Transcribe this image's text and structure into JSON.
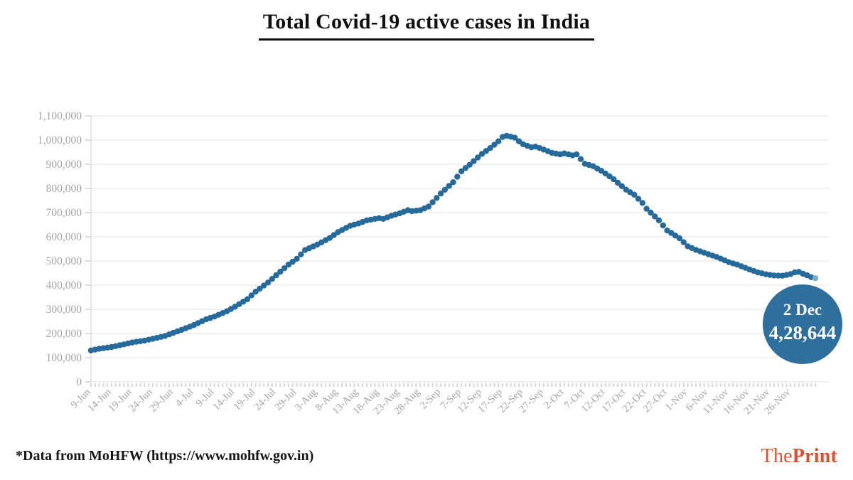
{
  "title": {
    "text": "Total Covid-19 active cases in India"
  },
  "footer": {
    "source_note": "*Data from MoHFW (https://www.mohfw.gov.in)",
    "logo": {
      "the": "The",
      "print": "Print",
      "color": "#dd4f2e"
    }
  },
  "chart_data": {
    "type": "scatter",
    "title": "Total Covid-19 active cases in India",
    "xlabel": "",
    "ylabel": "",
    "grid": true,
    "legend": "none",
    "ylim": [
      0,
      1100000
    ],
    "ytick_step": 100000,
    "ytick_labels": [
      "0",
      "100,000",
      "200,000",
      "300,000",
      "400,000",
      "500,000",
      "600,000",
      "700,000",
      "800,000",
      "900,000",
      "1,000,000",
      "1,100,000"
    ],
    "xtick_labels": [
      "9-Jun",
      "14-Jun",
      "19-Jun",
      "24-Jun",
      "29-Jun",
      "4-Jul",
      "9-Jul",
      "14-Jul",
      "19-Jul",
      "24-Jul",
      "29-Jul",
      "3-Aug",
      "8-Aug",
      "13-Aug",
      "18-Aug",
      "23-Aug",
      "28-Aug",
      "2-Sep",
      "7-Sep",
      "12-Sep",
      "17-Sep",
      "22-Sep",
      "27-Sep",
      "2-Oct",
      "7-Oct",
      "12-Oct",
      "17-Oct",
      "22-Oct",
      "27-Oct",
      "1-Nov",
      "6-Nov",
      "11-Nov",
      "16-Nov",
      "21-Nov",
      "26-Nov"
    ],
    "xtick_interval_days": 5,
    "start_date": "9-Jun",
    "end_date": "2-Dec",
    "total_days": 177,
    "dot_color": "#256a9b",
    "tail_dot_color": "#7fa9c6",
    "grid_color": "#e7e7e7",
    "axis_line_color": "#d9d9d9",
    "tick_color": "#cccccc",
    "axis_label_color": "#a5a5a5",
    "points": [
      {
        "day": 0,
        "date": "9-Jun",
        "value": 130000
      },
      {
        "day": 2,
        "date": "11-Jun",
        "value": 137000
      },
      {
        "day": 5,
        "date": "14-Jun",
        "value": 144000
      },
      {
        "day": 8,
        "date": "17-Jun",
        "value": 155000
      },
      {
        "day": 10,
        "date": "19-Jun",
        "value": 163000
      },
      {
        "day": 13,
        "date": "22-Jun",
        "value": 171000
      },
      {
        "day": 15,
        "date": "24-Jun",
        "value": 178000
      },
      {
        "day": 18,
        "date": "27-Jun",
        "value": 190000
      },
      {
        "day": 20,
        "date": "29-Jun",
        "value": 203000
      },
      {
        "day": 22,
        "date": "1-Jul",
        "value": 215000
      },
      {
        "day": 25,
        "date": "4-Jul",
        "value": 235000
      },
      {
        "day": 28,
        "date": "7-Jul",
        "value": 259000
      },
      {
        "day": 30,
        "date": "9-Jul",
        "value": 270000
      },
      {
        "day": 33,
        "date": "12-Jul",
        "value": 292000
      },
      {
        "day": 35,
        "date": "14-Jul",
        "value": 311000
      },
      {
        "day": 38,
        "date": "17-Jul",
        "value": 342000
      },
      {
        "day": 40,
        "date": "19-Jul",
        "value": 373000
      },
      {
        "day": 43,
        "date": "22-Jul",
        "value": 411000
      },
      {
        "day": 45,
        "date": "24-Jul",
        "value": 441000
      },
      {
        "day": 48,
        "date": "27-Jul",
        "value": 485000
      },
      {
        "day": 50,
        "date": "29-Jul",
        "value": 509000
      },
      {
        "day": 52,
        "date": "31-Jul",
        "value": 545000
      },
      {
        "day": 55,
        "date": "3-Aug",
        "value": 568000
      },
      {
        "day": 58,
        "date": "6-Aug",
        "value": 595000
      },
      {
        "day": 60,
        "date": "8-Aug",
        "value": 619000
      },
      {
        "day": 63,
        "date": "11-Aug",
        "value": 646000
      },
      {
        "day": 65,
        "date": "13-Aug",
        "value": 655000
      },
      {
        "day": 67,
        "date": "15-Aug",
        "value": 668000
      },
      {
        "day": 70,
        "date": "18-Aug",
        "value": 677000
      },
      {
        "day": 71,
        "date": "19-Aug",
        "value": 674000
      },
      {
        "day": 73,
        "date": "21-Aug",
        "value": 687000
      },
      {
        "day": 75,
        "date": "23-Aug",
        "value": 697000
      },
      {
        "day": 77,
        "date": "25-Aug",
        "value": 710000
      },
      {
        "day": 78,
        "date": "26-Aug",
        "value": 706000
      },
      {
        "day": 80,
        "date": "28-Aug",
        "value": 710000
      },
      {
        "day": 82,
        "date": "30-Aug",
        "value": 725000
      },
      {
        "day": 85,
        "date": "2-Sep",
        "value": 779000
      },
      {
        "day": 88,
        "date": "5-Sep",
        "value": 826000
      },
      {
        "day": 90,
        "date": "7-Sep",
        "value": 871000
      },
      {
        "day": 92,
        "date": "9-Sep",
        "value": 898000
      },
      {
        "day": 95,
        "date": "12-Sep",
        "value": 943000
      },
      {
        "day": 97,
        "date": "14-Sep",
        "value": 967000
      },
      {
        "day": 99,
        "date": "16-Sep",
        "value": 995000
      },
      {
        "day": 100,
        "date": "17-Sep",
        "value": 1013000
      },
      {
        "day": 101,
        "date": "18-Sep",
        "value": 1018000
      },
      {
        "day": 103,
        "date": "20-Sep",
        "value": 1010000
      },
      {
        "day": 104,
        "date": "21-Sep",
        "value": 995000
      },
      {
        "day": 105,
        "date": "22-Sep",
        "value": 983000
      },
      {
        "day": 107,
        "date": "24-Sep",
        "value": 970000
      },
      {
        "day": 108,
        "date": "25-Sep",
        "value": 973000
      },
      {
        "day": 110,
        "date": "27-Sep",
        "value": 961000
      },
      {
        "day": 112,
        "date": "29-Sep",
        "value": 947000
      },
      {
        "day": 114,
        "date": "1-Oct",
        "value": 941000
      },
      {
        "day": 115,
        "date": "2-Oct",
        "value": 945000
      },
      {
        "day": 117,
        "date": "4-Oct",
        "value": 937000
      },
      {
        "day": 118,
        "date": "5-Oct",
        "value": 941000
      },
      {
        "day": 120,
        "date": "7-Oct",
        "value": 902000
      },
      {
        "day": 122,
        "date": "9-Oct",
        "value": 892000
      },
      {
        "day": 124,
        "date": "11-Oct",
        "value": 873000
      },
      {
        "day": 125,
        "date": "12-Oct",
        "value": 862000
      },
      {
        "day": 127,
        "date": "14-Oct",
        "value": 838000
      },
      {
        "day": 130,
        "date": "17-Oct",
        "value": 795000
      },
      {
        "day": 132,
        "date": "19-Oct",
        "value": 774000
      },
      {
        "day": 134,
        "date": "21-Oct",
        "value": 740000
      },
      {
        "day": 135,
        "date": "22-Oct",
        "value": 716000
      },
      {
        "day": 138,
        "date": "25-Oct",
        "value": 668000
      },
      {
        "day": 140,
        "date": "27-Oct",
        "value": 626000
      },
      {
        "day": 141,
        "date": "28-Oct",
        "value": 616000
      },
      {
        "day": 143,
        "date": "30-Oct",
        "value": 594000
      },
      {
        "day": 145,
        "date": "1-Nov",
        "value": 561000
      },
      {
        "day": 147,
        "date": "3-Nov",
        "value": 546000
      },
      {
        "day": 148,
        "date": "4-Nov",
        "value": 540000
      },
      {
        "day": 150,
        "date": "6-Nov",
        "value": 528000
      },
      {
        "day": 152,
        "date": "8-Nov",
        "value": 517000
      },
      {
        "day": 155,
        "date": "11-Nov",
        "value": 495000
      },
      {
        "day": 157,
        "date": "13-Nov",
        "value": 485000
      },
      {
        "day": 160,
        "date": "16-Nov",
        "value": 465000
      },
      {
        "day": 162,
        "date": "18-Nov",
        "value": 453000
      },
      {
        "day": 164,
        "date": "20-Nov",
        "value": 445000
      },
      {
        "day": 166,
        "date": "22-Nov",
        "value": 440000
      },
      {
        "day": 168,
        "date": "24-Nov",
        "value": 439000
      },
      {
        "day": 170,
        "date": "26-Nov",
        "value": 446000
      },
      {
        "day": 171,
        "date": "27-Nov",
        "value": 453000
      },
      {
        "day": 172,
        "date": "28-Nov",
        "value": 455000
      },
      {
        "day": 173,
        "date": "29-Nov",
        "value": 447000
      },
      {
        "day": 174,
        "date": "30-Nov",
        "value": 441000
      },
      {
        "day": 175,
        "date": "1-Dec",
        "value": 433000
      },
      {
        "day": 176,
        "date": "2-Dec",
        "value": 428644
      }
    ],
    "annotation": {
      "date_label": "2 Dec",
      "value_label": "4,28,644",
      "value": 428644,
      "badge_color": "#2e6f9e",
      "text_color": "#ffffff"
    }
  }
}
